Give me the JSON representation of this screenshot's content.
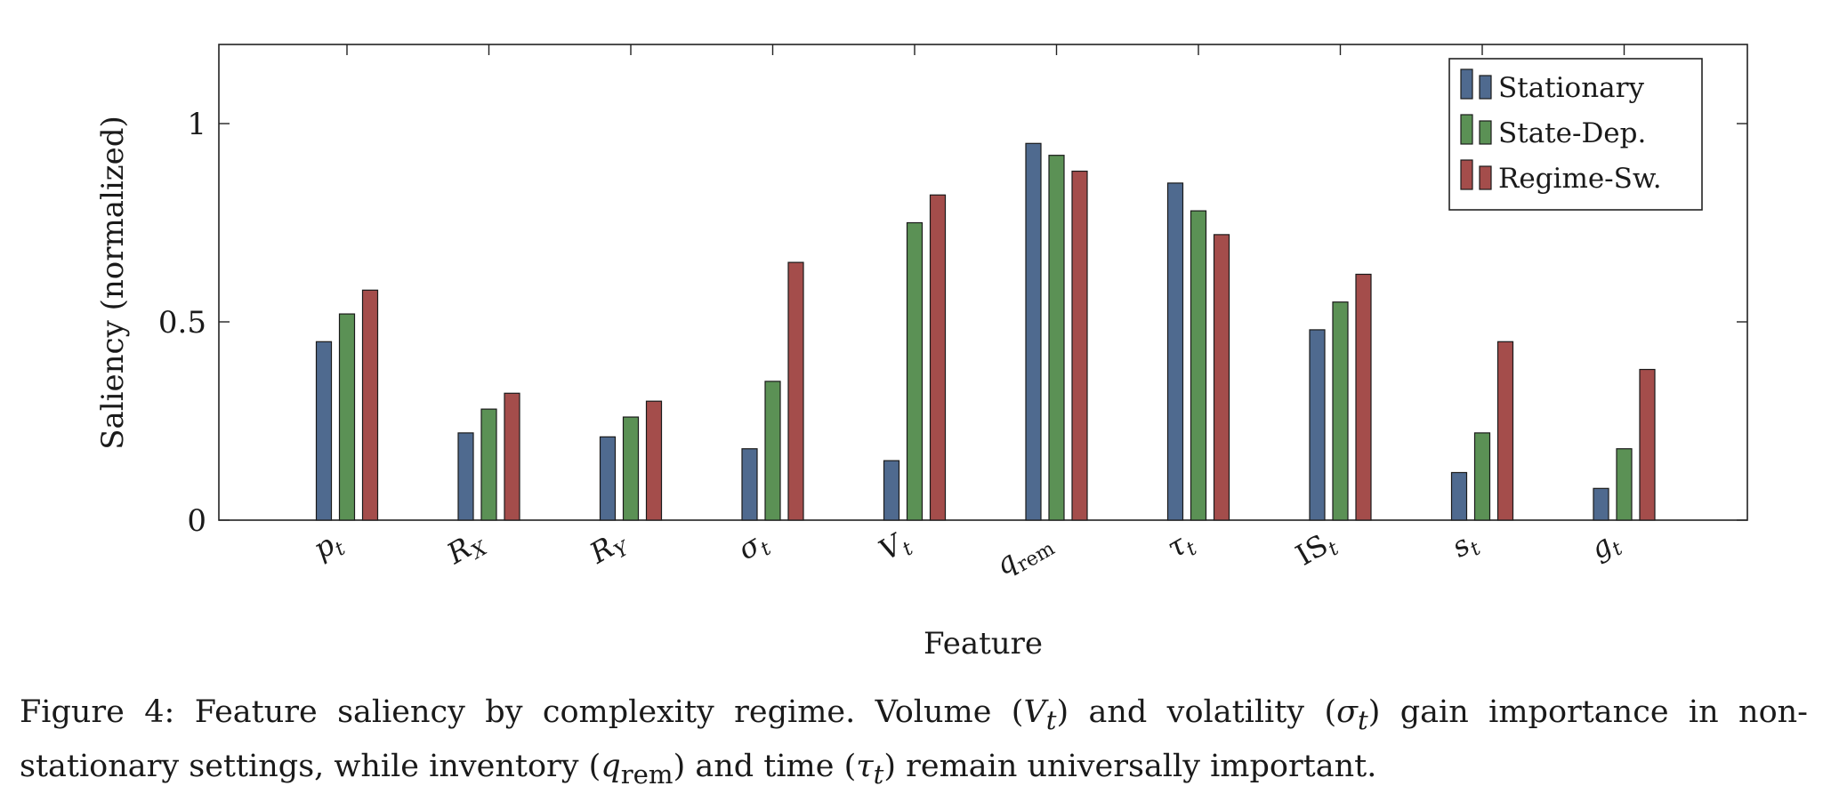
{
  "chart_data": {
    "type": "bar",
    "xlabel": "Feature",
    "ylabel": "Saliency (normalized)",
    "ylim": [
      0,
      1.2
    ],
    "yticks": [
      0,
      0.5,
      1
    ],
    "ytick_labels": [
      "0",
      "0.5",
      "1"
    ],
    "categories": [
      "p_t",
      "R_X",
      "R_Y",
      "σ_t",
      "V_t",
      "q_rem",
      "τ_t",
      "IS_t",
      "s_t",
      "g_t"
    ],
    "categories_display": [
      {
        "base": "p",
        "sub": "t"
      },
      {
        "base": "R",
        "sub": "X"
      },
      {
        "base": "R",
        "sub": "Y"
      },
      {
        "base": "σ",
        "sub": "t"
      },
      {
        "base": "V",
        "sub": "t"
      },
      {
        "base": "q",
        "sub": "rem"
      },
      {
        "base": "τ",
        "sub": "t"
      },
      {
        "base": "IS",
        "sub": "t"
      },
      {
        "base": "s",
        "sub": "t"
      },
      {
        "base": "g",
        "sub": "t"
      }
    ],
    "series": [
      {
        "name": "Stationary",
        "color": "#4f6a8f",
        "values": [
          0.45,
          0.22,
          0.21,
          0.18,
          0.15,
          0.95,
          0.85,
          0.48,
          0.12,
          0.08
        ]
      },
      {
        "name": "State-Dep.",
        "color": "#5b9155",
        "values": [
          0.52,
          0.28,
          0.26,
          0.35,
          0.75,
          0.92,
          0.78,
          0.55,
          0.22,
          0.18
        ]
      },
      {
        "name": "Regime-Sw.",
        "color": "#a44d4b",
        "values": [
          0.58,
          0.32,
          0.3,
          0.65,
          0.82,
          0.88,
          0.72,
          0.62,
          0.45,
          0.38
        ]
      }
    ],
    "legend_position": "top-right",
    "grid": false
  },
  "caption": {
    "label": "Figure 4:",
    "text_1": "Feature saliency by complexity regime. Volume (",
    "v_sym": "V",
    "v_sub": "t",
    "text_2": ") and volatility (",
    "s_sym": "σ",
    "s_sub": "t",
    "text_3": ") gain importance in non-stationary settings, while inventory (",
    "q_sym": "q",
    "q_sub": "rem",
    "text_4": ") and time (",
    "t_sym": "τ",
    "t_sub": "t",
    "text_5": ") remain universally important."
  }
}
